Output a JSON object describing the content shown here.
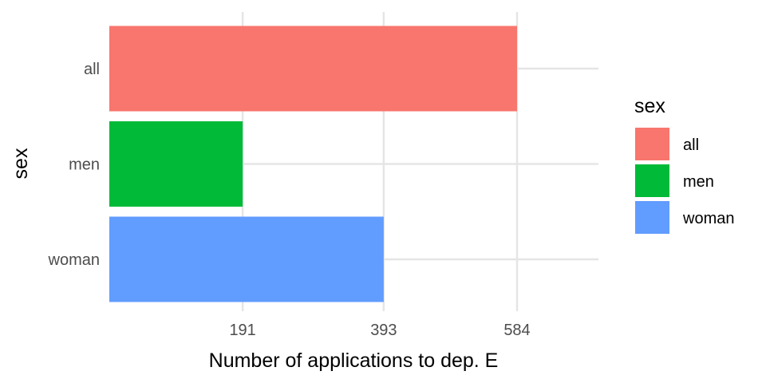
{
  "chart_data": {
    "type": "bar",
    "orientation": "horizontal",
    "categories": [
      "all",
      "men",
      "woman"
    ],
    "values": [
      584,
      191,
      393
    ],
    "colors": [
      "#F8766D",
      "#00BA38",
      "#619CFF"
    ],
    "xlabel": "Number of applications to dep. E",
    "ylabel": "sex",
    "xticks": [
      191,
      393,
      584
    ],
    "xlim": [
      0,
      700
    ],
    "grid": true,
    "legend": {
      "title": "sex",
      "placement": "right",
      "items": [
        {
          "label": "all",
          "color": "#F8766D"
        },
        {
          "label": "men",
          "color": "#00BA38"
        },
        {
          "label": "woman",
          "color": "#619CFF"
        }
      ]
    }
  }
}
